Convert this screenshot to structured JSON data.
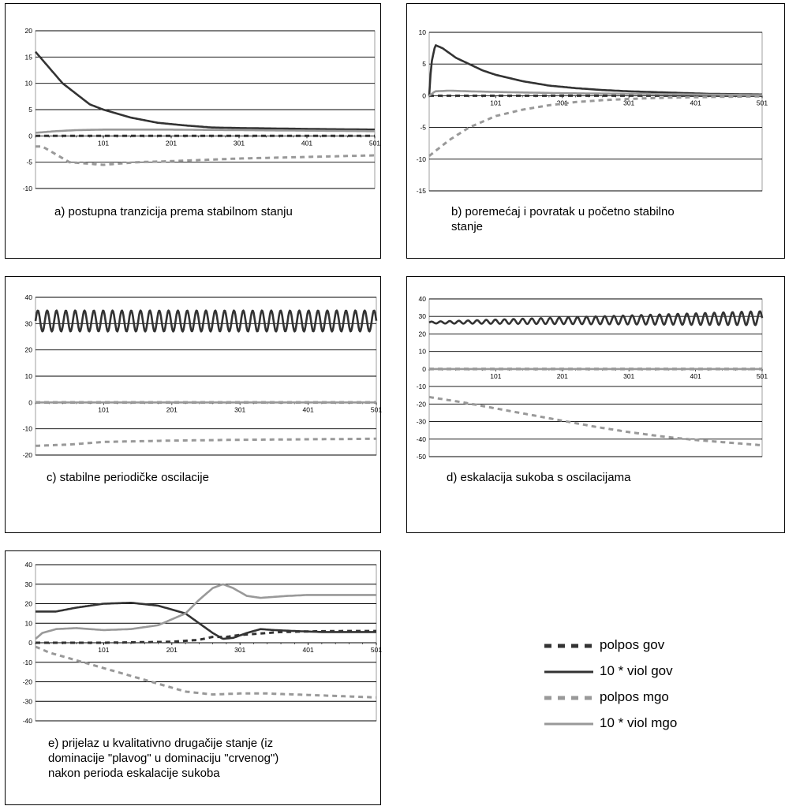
{
  "legend": {
    "items": [
      {
        "label": "polpos gov",
        "color": "#333333",
        "dashed": true,
        "width": 5
      },
      {
        "label": "10 * viol gov",
        "color": "#333333",
        "dashed": false,
        "width": 3
      },
      {
        "label": "polpos mgo",
        "color": "#999999",
        "dashed": true,
        "width": 5
      },
      {
        "label": "10 * viol mgo",
        "color": "#999999",
        "dashed": false,
        "width": 3
      }
    ]
  },
  "chart_data": [
    {
      "type": "line",
      "caption": "a) postupna tranzicija prema stabilnom stanju",
      "ylim": [
        -10,
        20
      ],
      "yticks": [
        -10,
        -5,
        0,
        5,
        10,
        15,
        20
      ],
      "xticks": [
        "101",
        "201",
        "301",
        "401",
        "501"
      ],
      "series": [
        {
          "name": "polpos gov",
          "x": [
            1,
            501
          ],
          "y": [
            0,
            0
          ]
        },
        {
          "name": "10 * viol gov",
          "x": [
            1,
            21,
            41,
            61,
            81,
            101,
            141,
            181,
            221,
            261,
            301,
            361,
            421,
            501
          ],
          "y": [
            16,
            13,
            10,
            8,
            6,
            5,
            3.5,
            2.5,
            2,
            1.6,
            1.5,
            1.4,
            1.3,
            1.2
          ]
        },
        {
          "name": "polpos mgo",
          "x": [
            1,
            11,
            31,
            51,
            101,
            151,
            201,
            301,
            401,
            501
          ],
          "y": [
            -2,
            -2,
            -3.5,
            -5,
            -5.5,
            -5,
            -4.8,
            -4.3,
            -4,
            -3.7
          ]
        },
        {
          "name": "10 * viol mgo",
          "x": [
            1,
            31,
            61,
            101,
            201,
            301,
            401,
            501
          ],
          "y": [
            0.6,
            0.9,
            1.1,
            1.2,
            1.2,
            1.1,
            1,
            0.9
          ]
        }
      ]
    },
    {
      "type": "line",
      "caption": "b) poremećaj i povratak u početno stabilno\n stanje",
      "ylim": [
        -15,
        10
      ],
      "yticks": [
        -15,
        -10,
        -5,
        0,
        5,
        10
      ],
      "xticks": [
        "101",
        "201",
        "301",
        "401",
        "501"
      ],
      "series": [
        {
          "name": "polpos gov",
          "x": [
            1,
            501
          ],
          "y": [
            0,
            0
          ]
        },
        {
          "name": "10 * viol gov",
          "x": [
            1,
            4,
            10,
            21,
            41,
            61,
            81,
            101,
            141,
            181,
            221,
            261,
            301,
            361,
            421,
            501
          ],
          "y": [
            0,
            5,
            8,
            7.5,
            6,
            5,
            4,
            3.3,
            2.3,
            1.6,
            1.2,
            0.9,
            0.7,
            0.5,
            0.3,
            0.2
          ]
        },
        {
          "name": "polpos mgo",
          "x": [
            1,
            31,
            61,
            101,
            141,
            181,
            221,
            261,
            301,
            361,
            421,
            501
          ],
          "y": [
            -9.5,
            -7,
            -5,
            -3.2,
            -2.2,
            -1.5,
            -1,
            -0.7,
            -0.5,
            -0.3,
            -0.2,
            -0.1
          ]
        },
        {
          "name": "10 * viol mgo",
          "x": [
            1,
            10,
            31,
            61,
            101,
            201,
            301,
            401,
            501
          ],
          "y": [
            0,
            0.7,
            0.8,
            0.7,
            0.6,
            0.4,
            0.3,
            0.2,
            0.1
          ]
        }
      ]
    },
    {
      "type": "line",
      "caption": "c) stabilne periodičke oscilacije",
      "ylim": [
        -20,
        40
      ],
      "yticks": [
        -20,
        -10,
        0,
        10,
        20,
        30,
        40
      ],
      "xticks": [
        "101",
        "201",
        "301",
        "401",
        "501"
      ],
      "oscillation": {
        "series": "10 * viol gov",
        "center": 31,
        "amp_start": 4,
        "amp_end": 4,
        "period": 13.7
      },
      "series": [
        {
          "name": "polpos gov",
          "x": [
            1,
            501
          ],
          "y": [
            0,
            0
          ]
        },
        {
          "name": "10 * viol gov",
          "x": [
            1,
            501
          ],
          "y": [
            31,
            31
          ]
        },
        {
          "name": "polpos mgo",
          "x": [
            1,
            51,
            101,
            201,
            301,
            401,
            501
          ],
          "y": [
            -16.5,
            -16,
            -15,
            -14.5,
            -14.2,
            -14,
            -13.8
          ]
        },
        {
          "name": "10 * viol mgo",
          "x": [
            1,
            501
          ],
          "y": [
            0,
            0
          ]
        }
      ]
    },
    {
      "type": "line",
      "caption": "d) eskalacija sukoba s oscilacijama",
      "ylim": [
        -50,
        40
      ],
      "yticks": [
        -50,
        -40,
        -30,
        -20,
        -10,
        0,
        10,
        20,
        30,
        40
      ],
      "xticks": [
        "101",
        "201",
        "301",
        "401",
        "501"
      ],
      "oscillation": {
        "series": "10 * viol gov",
        "center_start": 26.5,
        "center_end": 29,
        "amp_start": 0.5,
        "amp_end": 4,
        "period": 13.7
      },
      "series": [
        {
          "name": "polpos gov",
          "x": [
            1,
            501
          ],
          "y": [
            0,
            0
          ]
        },
        {
          "name": "10 * viol gov",
          "x": [
            1,
            501
          ],
          "y": [
            26.5,
            29
          ]
        },
        {
          "name": "polpos mgo",
          "x": [
            1,
            51,
            101,
            151,
            201,
            251,
            301,
            351,
            401,
            451,
            501
          ],
          "y": [
            -16,
            -19,
            -22.5,
            -26,
            -29.5,
            -33,
            -36,
            -38.5,
            -40.5,
            -42,
            -43.5
          ]
        },
        {
          "name": "10 * viol mgo",
          "x": [
            1,
            501
          ],
          "y": [
            0,
            0
          ]
        }
      ]
    },
    {
      "type": "line",
      "caption": "e) prijelaz u kvalitativno drugačije stanje (iz\n dominacije \"plavog\" u dominaciju \"crvenog\")\n nakon perioda eskalacije sukoba",
      "ylim": [
        -40,
        40
      ],
      "yticks": [
        -40,
        -30,
        -20,
        -10,
        0,
        10,
        20,
        30,
        40
      ],
      "xticks": [
        "101",
        "201",
        "301",
        "401",
        "501"
      ],
      "series": [
        {
          "name": "polpos gov",
          "x": [
            1,
            101,
            201,
            241,
            261,
            281,
            301,
            321,
            341,
            361,
            401,
            451,
            501
          ],
          "y": [
            0,
            0,
            0.5,
            1.5,
            3,
            3,
            4,
            4.5,
            5,
            5.5,
            5.8,
            6,
            6
          ]
        },
        {
          "name": "10 * viol gov",
          "x": [
            1,
            31,
            61,
            101,
            141,
            181,
            221,
            241,
            261,
            276,
            291,
            311,
            331,
            351,
            381,
            421,
            461,
            501
          ],
          "y": [
            16,
            16,
            18,
            20,
            20.5,
            19,
            15,
            10,
            5,
            2,
            2.5,
            5,
            7,
            6.5,
            6,
            5.5,
            5.5,
            5.5
          ]
        },
        {
          "name": "polpos mgo",
          "x": [
            1,
            21,
            51,
            81,
            101,
            141,
            181,
            221,
            261,
            301,
            341,
            381,
            421,
            461,
            501
          ],
          "y": [
            -2,
            -5,
            -8,
            -11,
            -13,
            -17,
            -21,
            -25,
            -26.5,
            -26,
            -26,
            -26.5,
            -27,
            -27.5,
            -28
          ]
        },
        {
          "name": "10 * viol mgo",
          "x": [
            1,
            11,
            31,
            61,
            101,
            141,
            181,
            221,
            241,
            261,
            276,
            291,
            311,
            331,
            351,
            371,
            401,
            451,
            501
          ],
          "y": [
            2,
            5,
            7,
            7.5,
            6.5,
            7,
            9,
            15,
            22,
            28,
            30,
            28,
            24,
            23,
            23.5,
            24,
            24.5,
            24.5,
            24.5
          ]
        }
      ]
    }
  ]
}
